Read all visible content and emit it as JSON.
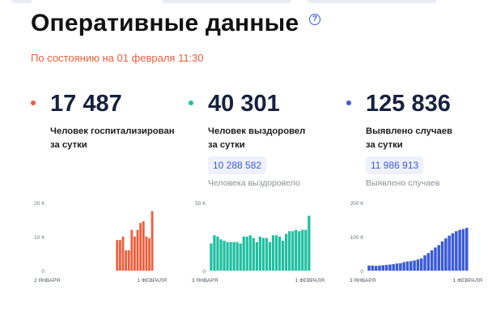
{
  "header": {
    "title": "Оперативные данные",
    "help_icon": "question-circle-icon",
    "subtitle": "По состоянию на 01 февраля 11:30"
  },
  "stats": [
    {
      "value": "17 487",
      "caption_line1": "Человек госпитализирован",
      "caption_line2": "за сутки",
      "dot_color": "#f05d3b"
    },
    {
      "value": "40 301",
      "caption_line1": "Человек выздоровел",
      "caption_line2": "за сутки",
      "dot_color": "#1fbf9f",
      "total": "10 288 582",
      "total_caption": "Человека выздоровело"
    },
    {
      "value": "125 836",
      "caption_line1": "Выявлено случаев",
      "caption_line2": "за сутки",
      "dot_color": "#3b5bdb",
      "total": "11 986 913",
      "total_caption": "Выявлено случаев"
    }
  ],
  "colors": {
    "hospitalized": "#f05d3b",
    "recovered": "#1fbf9f",
    "cases": "#3b5bdb"
  },
  "chart_data": [
    {
      "type": "bar",
      "name": "hospitalized",
      "color": "#f05d3b",
      "ylim": [
        0,
        20000
      ],
      "yticks": [
        "0",
        "10 К",
        "20 К"
      ],
      "xlabels": [
        "2 ЯНВАРЯ",
        "1 ФЕВРАЛЯ"
      ],
      "values": [
        0,
        0,
        0,
        0,
        0,
        0,
        0,
        0,
        0,
        0,
        0,
        0,
        0,
        0,
        0,
        0,
        0,
        0,
        0,
        0,
        0,
        0,
        0,
        9000,
        9000,
        10000,
        6000,
        6000,
        12000,
        10000,
        12000,
        14000,
        14500,
        10000,
        9500,
        17487
      ]
    },
    {
      "type": "bar",
      "name": "recovered",
      "color": "#1fbf9f",
      "ylim": [
        0,
        50000
      ],
      "yticks": [
        "0",
        "50 К"
      ],
      "xlabels": [
        "3 ЯНВАРЯ",
        "1 ФЕВРАЛЯ"
      ],
      "values": [
        20000,
        26000,
        25000,
        23000,
        22000,
        21000,
        21000,
        21000,
        21000,
        20000,
        25000,
        25000,
        26000,
        24000,
        21000,
        25000,
        24000,
        24000,
        21000,
        26000,
        26000,
        25000,
        22000,
        27000,
        29000,
        29000,
        30000,
        29000,
        30000,
        30000,
        40301
      ]
    },
    {
      "type": "bar",
      "name": "cases",
      "color": "#3b5bdb",
      "ylim": [
        0,
        200000
      ],
      "yticks": [
        "0",
        "100 К",
        "200 К"
      ],
      "xlabels": [
        "3 ЯНВАРЯ",
        "1 ФЕВРАЛЯ"
      ],
      "values": [
        15000,
        15000,
        14000,
        15000,
        16000,
        17000,
        18000,
        19000,
        21000,
        22000,
        25000,
        27000,
        28000,
        30000,
        33000,
        36000,
        45000,
        52000,
        60000,
        68000,
        75000,
        86000,
        95000,
        103000,
        110000,
        116000,
        120000,
        122000,
        125836
      ]
    }
  ]
}
